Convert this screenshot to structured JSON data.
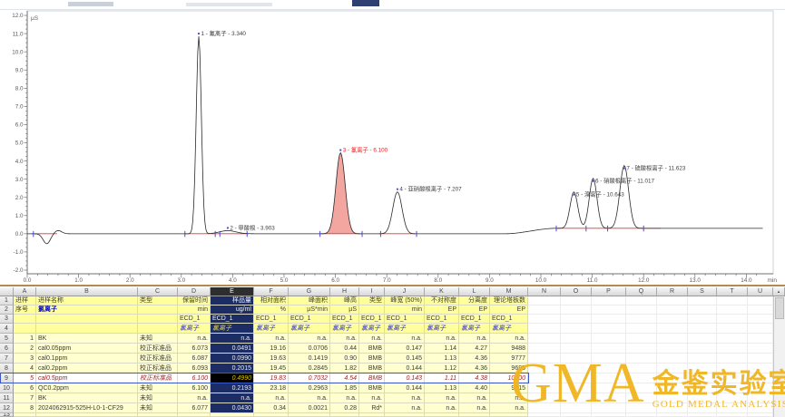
{
  "chart_data": {
    "type": "line",
    "title": "",
    "xlabel": "min",
    "ylabel": "µS",
    "xlim": [
      0.0,
      14.3
    ],
    "ylim": [
      -2.0,
      12.0
    ],
    "x_tick_step": 1.0,
    "y_tick_step": 1.0,
    "grid": false,
    "trace_color": "#2a2a2a",
    "selected_peak_fill": "#f2a09a",
    "peaks": [
      {
        "n": 1,
        "name": "氟离子",
        "rt": "3.340",
        "height": 10.85,
        "sigma": 0.05,
        "selected": false
      },
      {
        "n": 2,
        "name": "甲酸根",
        "rt": "3.903",
        "height": 0.17,
        "sigma": 0.16,
        "selected": false
      },
      {
        "n": 3,
        "name": "氯离子",
        "rt": "6.100",
        "height": 4.45,
        "sigma": 0.09,
        "selected": true
      },
      {
        "n": 4,
        "name": "亚硝酸根离子",
        "rt": "7.207",
        "height": 2.3,
        "sigma": 0.09,
        "selected": false
      },
      {
        "n": 5,
        "name": "溴离子",
        "rt": "10.643",
        "height": 2.0,
        "sigma": 0.075,
        "selected": false
      },
      {
        "n": 6,
        "name": "硝酸根离子",
        "rt": "11.017",
        "height": 2.75,
        "sigma": 0.075,
        "selected": false
      },
      {
        "n": 7,
        "name": "硫酸根离子",
        "rt": "11.623",
        "height": 3.45,
        "sigma": 0.085,
        "selected": false
      }
    ],
    "integration": {
      "segments": [
        [
          0.08,
          0.62
        ],
        [
          3.05,
          3.7
        ],
        [
          3.7,
          4.3
        ],
        [
          5.68,
          6.54
        ],
        [
          6.86,
          7.6
        ],
        [
          10.28,
          12.35
        ]
      ],
      "delimiters": [
        0.12,
        3.07,
        3.66,
        3.75,
        4.28,
        5.7,
        6.52,
        6.88,
        7.58,
        10.3,
        10.88,
        11.3,
        12.0
      ],
      "baseline_color": "#e83434",
      "delimiter_color": "#4b4bdc"
    }
  },
  "table": {
    "col_letters": [
      "A",
      "B",
      "C",
      "D",
      "E",
      "F",
      "G",
      "H",
      "I",
      "J",
      "K",
      "L",
      "M",
      "N",
      "O",
      "P",
      "Q",
      "R",
      "S",
      "T",
      "U"
    ],
    "selected_column": "E",
    "header_columns": {
      "A": [
        "进样",
        "序号",
        "",
        ""
      ],
      "B": [
        "进样名称",
        "氯离子",
        "",
        ""
      ],
      "C": [
        "类型",
        "",
        "",
        ""
      ],
      "D": [
        "保留时间",
        "min",
        "ECD_1",
        "氯离子"
      ],
      "E": [
        "样品量",
        "ug/ml",
        "ECD_1",
        "氯离子"
      ],
      "F": [
        "相对面积",
        "%",
        "ECD_1",
        "氯离子"
      ],
      "G": [
        "峰面积",
        "µS*min",
        "ECD_1",
        "氯离子"
      ],
      "H": [
        "峰高",
        "µS",
        "ECD_1",
        "氯离子"
      ],
      "I": [
        "类型",
        "",
        "ECD_1",
        "氯离子"
      ],
      "J": [
        "峰宽 (50%)",
        "min",
        "ECD_1",
        "氯离子"
      ],
      "K": [
        "不对称度",
        "EP",
        "ECD_1",
        "氯离子"
      ],
      "L": [
        "分离度",
        "EP",
        "ECD_1",
        "氯离子"
      ],
      "M": [
        "理论塔板数",
        "EP",
        "ECD_1",
        "氯离子"
      ]
    },
    "rows": [
      {
        "no": 5,
        "inj": "1",
        "name": "BK",
        "type": "未知",
        "selected": false,
        "values": [
          "n.a.",
          "n.a.",
          "n.a.",
          "n.a.",
          "n.a.",
          "n.a.",
          "n.a.",
          "n.a.",
          "n.a.",
          "n.a."
        ]
      },
      {
        "no": 6,
        "inj": "2",
        "name": "cal0.05ppm",
        "type": "校正标准品",
        "selected": false,
        "values": [
          "6.073",
          "0.0491",
          "19.16",
          "0.0706",
          "0.44",
          "BMB",
          "0.147",
          "1.14",
          "4.27",
          "9488"
        ]
      },
      {
        "no": 7,
        "inj": "3",
        "name": "cal0.1ppm",
        "type": "校正标准品",
        "selected": false,
        "values": [
          "6.087",
          "0.0990",
          "19.63",
          "0.1419",
          "0.90",
          "BMB",
          "0.145",
          "1.13",
          "4.36",
          "9777"
        ]
      },
      {
        "no": 8,
        "inj": "4",
        "name": "cal0.2ppm",
        "type": "校正标准品",
        "selected": false,
        "values": [
          "6.093",
          "0.2015",
          "19.45",
          "0.2845",
          "1.82",
          "BMB",
          "0.144",
          "1.12",
          "4.36",
          "9695"
        ]
      },
      {
        "no": 9,
        "inj": "5",
        "name": "cal0.5ppm",
        "type": "校正标准品",
        "selected": true,
        "values": [
          "6.100",
          "0.4990",
          "19.83",
          "0.7032",
          "4.54",
          "BMB",
          "0.143",
          "1.11",
          "4.38",
          "10000"
        ]
      },
      {
        "no": 10,
        "inj": "6",
        "name": "QC0.2ppm",
        "type": "未知",
        "selected": false,
        "values": [
          "6.100",
          "0.2193",
          "23.18",
          "0.2963",
          "1.85",
          "BMB",
          "0.144",
          "1.13",
          "4.40",
          "9915"
        ]
      },
      {
        "no": 11,
        "inj": "7",
        "name": "BK",
        "type": "未知",
        "selected": false,
        "values": [
          "n.a.",
          "n.a.",
          "n.a.",
          "n.a.",
          "n.a.",
          "n.a.",
          "n.a.",
          "n.a.",
          "n.a.",
          "n.a."
        ]
      },
      {
        "no": 12,
        "inj": "8",
        "name": "2024062915-525H-L0-1-CF29",
        "type": "未知",
        "selected": false,
        "values": [
          "6.077",
          "0.0430",
          "0.34",
          "0.0021",
          "0.28",
          "Rd*",
          "n.a.",
          "n.a.",
          "n.a.",
          "n.a."
        ]
      }
    ],
    "partial_row_no": "13",
    "na_text": "n.a."
  },
  "logo": {
    "acronym": "GMA",
    "cn": "金鉴实验室",
    "sub": "GOLD MEDAL ANALYSIS",
    "color": "#f0b41e"
  }
}
